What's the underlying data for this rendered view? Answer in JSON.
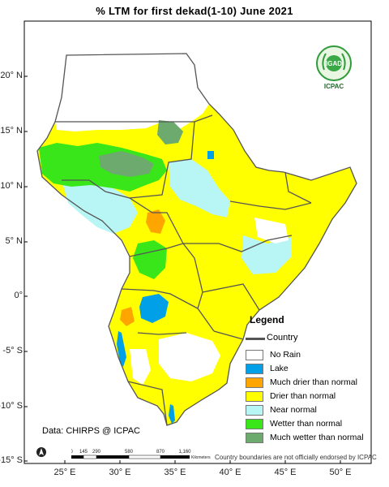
{
  "title": "% LTM  for  first  dekad(1-10) June  2021",
  "axes": {
    "y_ticks": [
      "20° N",
      "15° N",
      "10° N",
      "5° N",
      "0°",
      "-5° S",
      "-10° S",
      "-15° S"
    ],
    "x_ticks": [
      "25° E",
      "30° E",
      "35° E",
      "40° E",
      "45° E",
      "50° E"
    ]
  },
  "logo": {
    "top_text": "IGAD",
    "bottom_text": "ICPAC"
  },
  "legend": {
    "title": "Legend",
    "country_label": "Country",
    "items": [
      {
        "label": "No Rain",
        "color": "#ffffff"
      },
      {
        "label": "Lake",
        "color": "#00a0e8"
      },
      {
        "label": "Much drier than normal",
        "color": "#ffa500"
      },
      {
        "label": "Drier than normal",
        "color": "#ffff00"
      },
      {
        "label": "Near normal",
        "color": "#b8f5f5"
      },
      {
        "label": "Wetter than normal",
        "color": "#39e61a"
      },
      {
        "label": "Much wetter than normal",
        "color": "#6daa6d"
      }
    ]
  },
  "source_text": "Data: CHIRPS @ ICPAC",
  "disclaimer": "Country boundaries are not officially endorsed by ICPAC",
  "scale_bar": {
    "ticks": [
      "0",
      "145",
      "290",
      "580",
      "870",
      "1,160"
    ],
    "unit": "Kilometers"
  },
  "north_arrow": "N"
}
